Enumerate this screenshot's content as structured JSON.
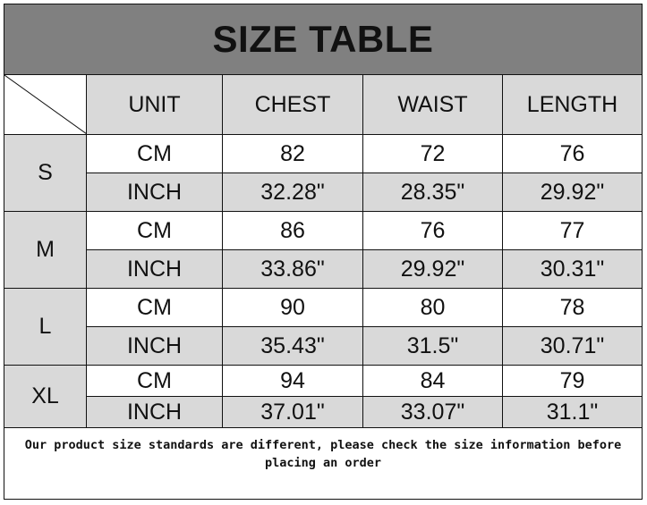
{
  "title": "SIZE TABLE",
  "headers": [
    "UNIT",
    "CHEST",
    "WAIST",
    "LENGTH"
  ],
  "sizes": [
    {
      "label": "S",
      "rows": [
        {
          "unit": "CM",
          "chest": "82",
          "waist": "72",
          "length": "76"
        },
        {
          "unit": "INCH",
          "chest": "32.28\"",
          "waist": "28.35\"",
          "length": "29.92\""
        }
      ]
    },
    {
      "label": "M",
      "rows": [
        {
          "unit": "CM",
          "chest": "86",
          "waist": "76",
          "length": "77"
        },
        {
          "unit": "INCH",
          "chest": "33.86\"",
          "waist": "29.92\"",
          "length": "30.31\""
        }
      ]
    },
    {
      "label": "L",
      "rows": [
        {
          "unit": "CM",
          "chest": "90",
          "waist": "80",
          "length": "78"
        },
        {
          "unit": "INCH",
          "chest": "35.43\"",
          "waist": "31.5\"",
          "length": "30.71\""
        }
      ]
    },
    {
      "label": "XL",
      "rows": [
        {
          "unit": "CM",
          "chest": "94",
          "waist": "84",
          "length": "79"
        },
        {
          "unit": "INCH",
          "chest": "37.01\"",
          "waist": "33.07\"",
          "length": "31.1\""
        }
      ]
    }
  ],
  "note": "Our product size standards are different, please check the size information before placing an order",
  "colors": {
    "title_bg": "#808080",
    "header_bg": "#d9d9d9",
    "inch_row_bg": "#d9d9d9"
  }
}
